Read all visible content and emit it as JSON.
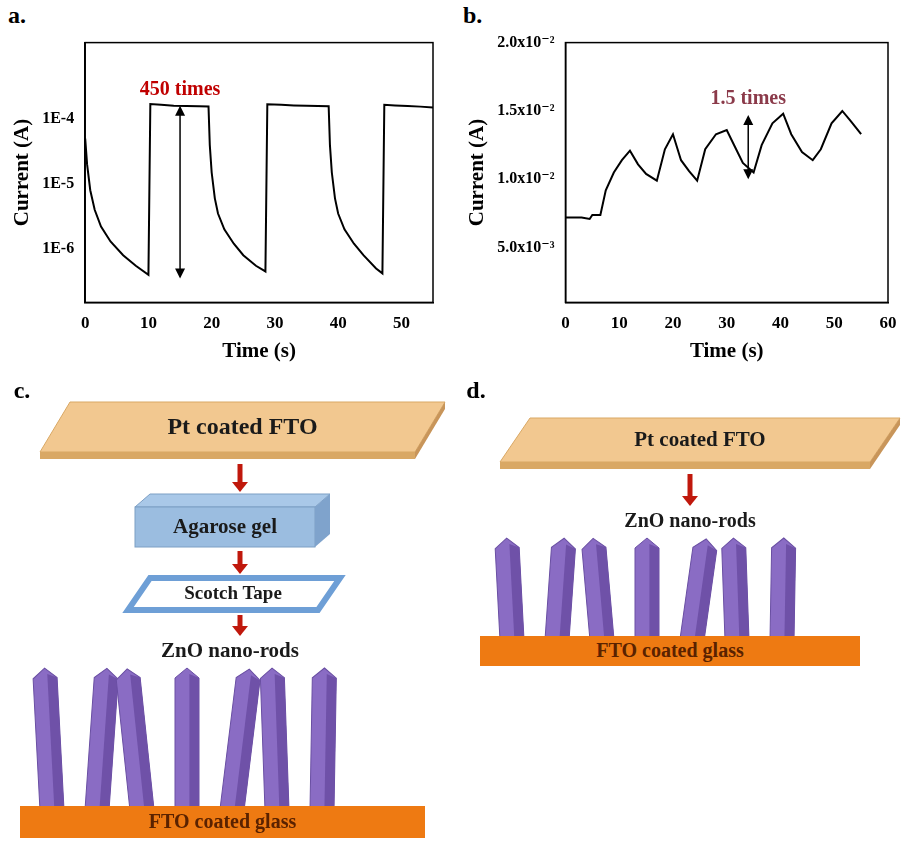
{
  "chart_data": [
    {
      "panel_label": "a.",
      "type": "line",
      "color": "#000000",
      "log": "y",
      "grid": false,
      "x_label": "Time (s)",
      "y_label": "Current (A)",
      "xlim": [
        0,
        55
      ],
      "xticks": [
        0,
        10,
        20,
        30,
        40,
        50
      ],
      "ylim": [
        1.5e-07,
        0.0015
      ],
      "yticks": [
        {
          "value": 1e-06,
          "label": "1E-6"
        },
        {
          "value": 1e-05,
          "label": "1E-5"
        },
        {
          "value": 0.0001,
          "label": "1E-4"
        }
      ],
      "x": [
        0,
        0.3,
        0.8,
        1.5,
        2.5,
        4,
        6,
        8,
        10,
        10.3,
        12,
        14,
        16,
        18,
        19.5,
        19.7,
        20,
        20.5,
        21,
        22,
        23.5,
        25,
        27,
        28.5,
        28.8,
        31,
        33,
        35,
        38.5,
        38.7,
        39,
        39.5,
        40,
        41,
        42.5,
        44,
        46,
        47,
        47.3,
        49,
        51,
        53,
        55
      ],
      "values": [
        5e-05,
        2e-05,
        8e-06,
        4e-06,
        2.2e-06,
        1.3e-06,
        8e-07,
        5.5e-07,
        4e-07,
        0.00017,
        0.000165,
        0.00016,
        0.000158,
        0.000157,
        0.000156,
        4e-05,
        1.5e-05,
        6e-06,
        3.5e-06,
        2e-06,
        1.2e-06,
        8e-07,
        5.5e-07,
        4.5e-07,
        0.000168,
        0.000165,
        0.000162,
        0.00016,
        0.000157,
        4e-05,
        1.5e-05,
        6e-06,
        3.5e-06,
        2e-06,
        1.2e-06,
        8e-07,
        5e-07,
        4.2e-07,
        0.000166,
        0.000162,
        0.000158,
        0.000155,
        0.00015
      ],
      "annotations": [
        {
          "text": "450 times",
          "x": 15,
          "y_from": 3.5e-07,
          "y_to": 0.00016,
          "color": "#c00000"
        }
      ]
    },
    {
      "panel_label": "b.",
      "type": "line",
      "color": "#000000",
      "grid": false,
      "x_label": "Time (s)",
      "y_label": "Current (A)",
      "xlim": [
        0,
        60
      ],
      "xticks": [
        0,
        10,
        20,
        30,
        40,
        50,
        60
      ],
      "ylim": [
        0.001,
        0.02
      ],
      "yticks": [
        {
          "value": 0.005,
          "label": "5.0x10⁻³"
        },
        {
          "value": 0.01,
          "label": "1.0x10⁻²"
        },
        {
          "value": 0.015,
          "label": "1.5x10⁻²"
        },
        {
          "value": 0.02,
          "label": "2.0x10⁻²"
        }
      ],
      "x": [
        0,
        3,
        4.5,
        5,
        6.5,
        7.5,
        9,
        10.5,
        12,
        13.5,
        15,
        17,
        18.5,
        20,
        21.5,
        23,
        24.5,
        26,
        28,
        30,
        31.5,
        33,
        35,
        36.5,
        38.5,
        40.5,
        42,
        44,
        46,
        47.5,
        49.5,
        51.5,
        53,
        55
      ],
      "values": [
        0.0072,
        0.0072,
        0.0071,
        0.0074,
        0.0074,
        0.0092,
        0.0105,
        0.0114,
        0.0121,
        0.0111,
        0.0104,
        0.0099,
        0.0122,
        0.0133,
        0.0114,
        0.0106,
        0.0099,
        0.0122,
        0.0133,
        0.0136,
        0.0124,
        0.0112,
        0.0105,
        0.0125,
        0.0141,
        0.0148,
        0.0133,
        0.012,
        0.0114,
        0.0122,
        0.0141,
        0.015,
        0.0143,
        0.0133
      ],
      "annotations": [
        {
          "text": "1.5 times",
          "x": 34,
          "y_from": 0.01,
          "y_to": 0.0147,
          "color": "#8b3a4a"
        }
      ]
    }
  ],
  "diagrams": [
    {
      "panel_label": "c.",
      "top_electrode": "Pt coated FTO",
      "gel": "Agarose gel",
      "spacer": "Scotch Tape",
      "rods": "ZnO nano-rods",
      "substrate": "FTO coated glass"
    },
    {
      "panel_label": "d.",
      "top_electrode": "Pt coated FTO",
      "rods": "ZnO nano-rods",
      "substrate": "FTO coated glass"
    }
  ]
}
